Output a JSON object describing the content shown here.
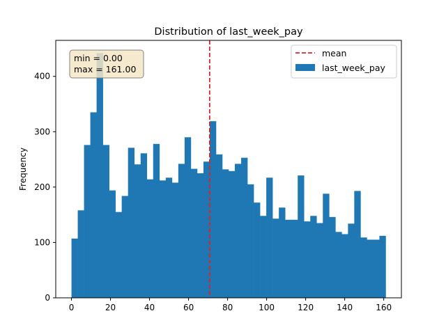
{
  "chart_data": {
    "type": "bar",
    "title": "Distribution of last_week_pay",
    "xlabel": "",
    "ylabel": "Frequency",
    "xlim": [
      -8.05,
      169.05
    ],
    "ylim": [
      0,
      465
    ],
    "xticks": [
      0,
      20,
      40,
      60,
      80,
      100,
      120,
      140,
      160
    ],
    "yticks": [
      0,
      100,
      200,
      300,
      400
    ],
    "grid": false,
    "legend": "top-right",
    "bins": {
      "start": 0,
      "width": 3.22,
      "counts": [
        107,
        158,
        276,
        335,
        442,
        276,
        194,
        155,
        184,
        271,
        241,
        261,
        214,
        278,
        212,
        217,
        208,
        242,
        290,
        233,
        225,
        246,
        319,
        259,
        232,
        229,
        242,
        253,
        205,
        172,
        148,
        217,
        143,
        163,
        141,
        141,
        221,
        138,
        148,
        135,
        188,
        146,
        119,
        115,
        134,
        193,
        109,
        105,
        105,
        112
      ]
    },
    "series": [
      {
        "name": "last_week_pay",
        "color": "#1f77b4"
      }
    ],
    "mean_line": {
      "name": "mean",
      "value": 70.8,
      "color": "#d62728"
    },
    "annotation": {
      "line1": "min = 0.00",
      "line2": "max = 161.00",
      "background": "#f5e6c6"
    }
  }
}
